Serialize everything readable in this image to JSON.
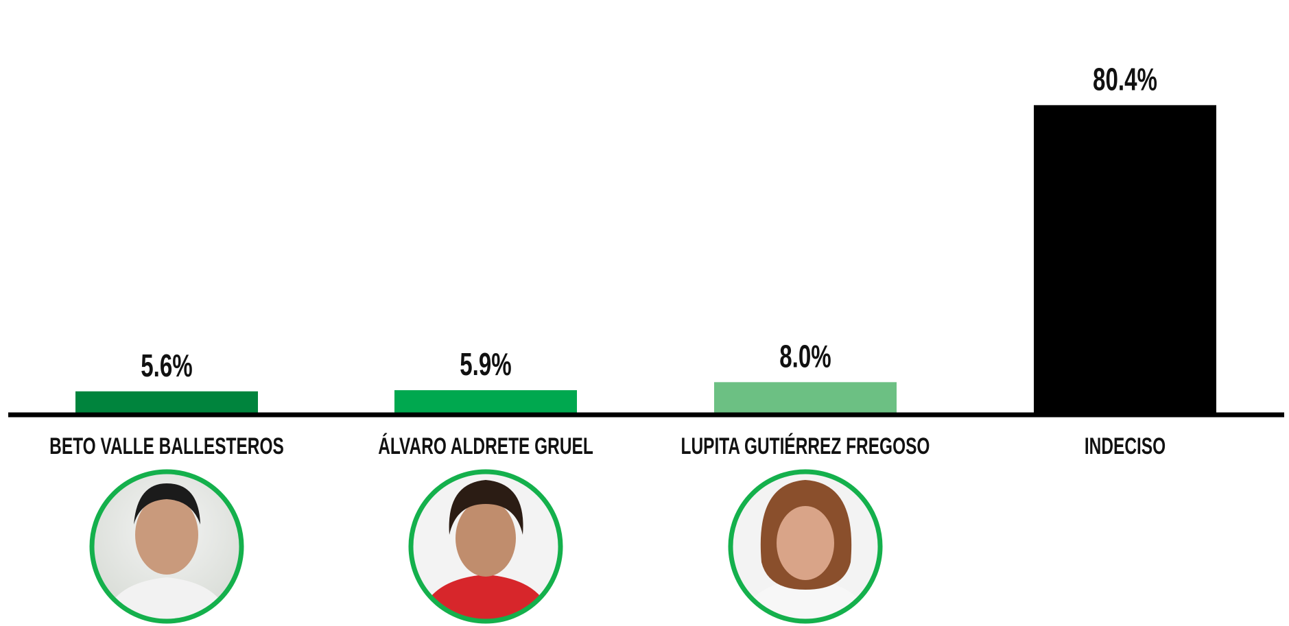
{
  "chart_data": {
    "type": "bar",
    "categories": [
      "BETO VALLE BALLESTEROS",
      "ÁLVARO ALDRETE GRUEL",
      "LUPITA GUTIÉRREZ FREGOSO",
      "INDECISO"
    ],
    "values": [
      5.6,
      5.9,
      8.0,
      80.4
    ],
    "value_labels": [
      "5.6%",
      "5.9%",
      "8.0%",
      "80.4%"
    ],
    "colors": [
      "#00843d",
      "#00a84f",
      "#6cc083",
      "#000000"
    ]
  }
}
